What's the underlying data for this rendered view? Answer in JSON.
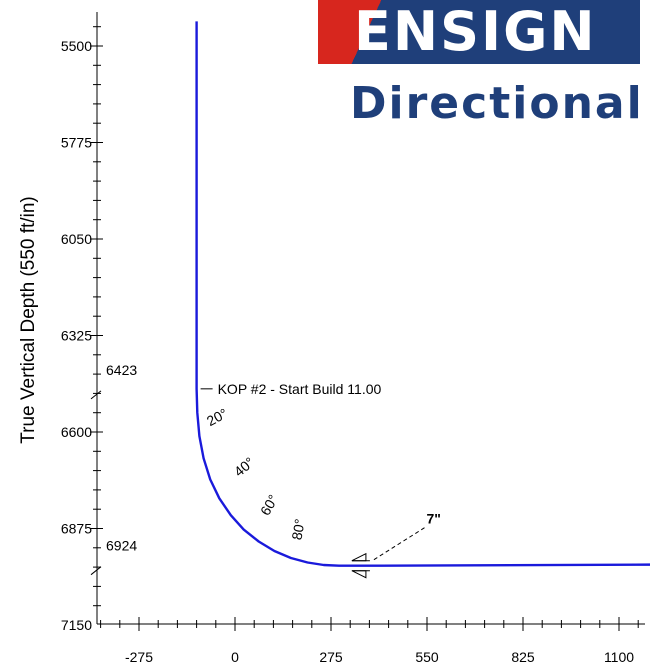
{
  "logo": {
    "brand": "ENSIGN",
    "subtitle": "Directional"
  },
  "chart_data": {
    "type": "line",
    "xlim": [
      -450,
      1200
    ],
    "ylim": [
      5420,
      7160
    ],
    "ylabel": "True Vertical Depth (550 ft/in)",
    "xticks": [
      -275,
      0,
      275,
      550,
      825,
      1100
    ],
    "yticks": [
      5500,
      5775,
      6050,
      6325,
      6600,
      6875,
      7150
    ],
    "series": [
      {
        "color": "#1a1adb",
        "x": [
          -110,
          -110,
          -110,
          -108,
          -102,
          -90,
          -71,
          -45,
          -12,
          25,
          68,
          113,
          160,
          208,
          254,
          298,
          338,
          370,
          390,
          1200
        ],
        "y": [
          5430,
          6000,
          6477,
          6545,
          6612,
          6675,
          6735,
          6789,
          6837,
          6878,
          6912,
          6939,
          6959,
          6972,
          6979,
          6981,
          6981,
          6981,
          6981,
          6978
        ]
      }
    ],
    "annotations": [
      {
        "text": "KOP #2 - Start Build 11.00",
        "x": -110,
        "y": 6477
      },
      {
        "text": "20°",
        "x": -45,
        "y": 6570,
        "rotate": -28
      },
      {
        "text": "40°",
        "x": 35,
        "y": 6710,
        "rotate": -40
      },
      {
        "text": "60°",
        "x": 110,
        "y": 6815,
        "rotate": -60
      },
      {
        "text": "80°",
        "x": 195,
        "y": 6880,
        "rotate": -80
      }
    ],
    "casing": {
      "label": "7\"",
      "x": 375,
      "y": 6981,
      "label_x": 560,
      "label_y": 6850
    },
    "left_markers": [
      {
        "label": "6423",
        "y": 6423
      },
      {
        "label": "6924",
        "y": 6924
      }
    ]
  }
}
